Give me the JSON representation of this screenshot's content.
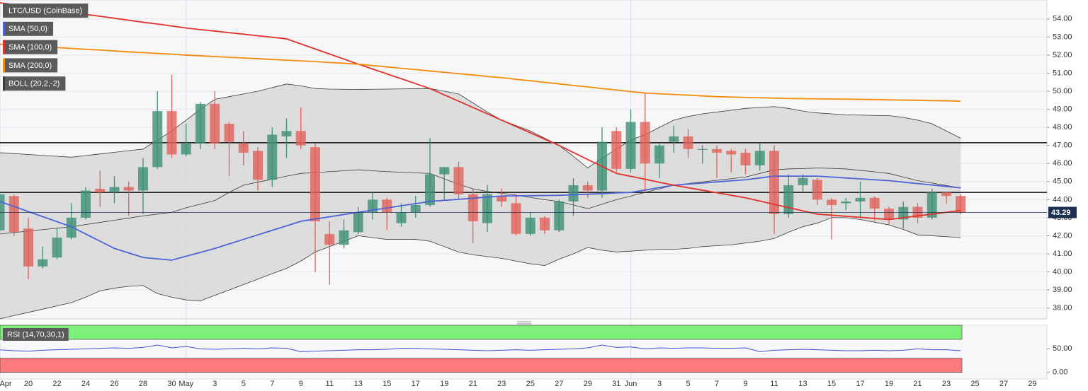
{
  "chart_data": [
    {
      "type": "candlestick",
      "categories": [
        "Apr",
        null,
        "20",
        null,
        "22",
        null,
        "24",
        null,
        "26",
        null,
        "28",
        null,
        "30",
        "May",
        null,
        "3",
        null,
        "5",
        null,
        "7",
        null,
        "9",
        null,
        "11",
        null,
        "13",
        null,
        "15",
        null,
        "17",
        null,
        "19",
        null,
        "21",
        null,
        "23",
        null,
        "25",
        null,
        "27",
        null,
        "29",
        null,
        "31",
        "Jun",
        null,
        "3",
        null,
        "5",
        null,
        "7",
        null,
        "9",
        null,
        "11",
        null,
        "13",
        null,
        "15",
        null,
        "17",
        null,
        "19",
        null,
        "21",
        null,
        "23",
        null,
        "25",
        null,
        "27",
        null,
        "29"
      ],
      "series": [
        {
          "name": "LTC/USD (CoinBase)",
          "up_color": "#3f9078",
          "down_color": "#e0615a",
          "open": [
            42.3,
            44.2,
            42.4,
            40.3,
            40.8,
            41.9,
            43.0,
            44.6,
            44.4,
            44.7,
            44.5,
            45.8,
            48.9,
            46.5,
            47.1,
            49.3,
            48.2,
            47.1,
            46.7,
            45.1,
            47.5,
            47.8,
            46.9,
            42.1,
            41.5,
            42.2,
            43.3,
            44.0,
            42.7,
            43.3,
            43.7,
            45.4,
            45.8,
            44.3,
            42.7,
            44.2,
            43.8,
            42.1,
            43.0,
            42.3,
            43.9,
            44.8,
            44.5,
            47.8,
            45.7,
            48.3,
            46.0,
            47.2,
            47.5,
            46.8,
            46.8,
            46.7,
            46.6,
            45.9,
            46.7,
            43.2,
            44.8,
            45.1,
            44.0,
            43.8,
            43.9,
            44.1,
            43.5,
            42.9,
            43.6,
            43.0,
            44.4,
            44.2,
            null,
            null,
            null,
            null,
            null
          ],
          "high": [
            44.5,
            44.3,
            43.0,
            41.4,
            42.4,
            43.8,
            44.7,
            45.6,
            45.3,
            45.0,
            46.3,
            50.0,
            50.9,
            48.2,
            49.4,
            50.0,
            48.3,
            47.8,
            46.9,
            48.0,
            48.5,
            49.1,
            47.1,
            42.8,
            42.9,
            43.6,
            44.4,
            44.1,
            43.8,
            44.2,
            47.4,
            45.8,
            46.1,
            44.6,
            44.8,
            44.6,
            44.3,
            43.3,
            43.1,
            44.0,
            45.2,
            45.0,
            48.0,
            48.0,
            49.0,
            49.9,
            47.1,
            48.1,
            47.9,
            47.0,
            47.0,
            46.8,
            46.8,
            47.1,
            47.0,
            45.4,
            45.4,
            45.2,
            44.1,
            44.1,
            45.0,
            44.2,
            43.6,
            43.9,
            43.8,
            44.6,
            44.4,
            44.3,
            null,
            null,
            null,
            null,
            null
          ],
          "low": [
            42.2,
            42.0,
            39.6,
            40.2,
            40.7,
            41.8,
            42.9,
            43.6,
            43.8,
            43.1,
            43.2,
            45.7,
            46.3,
            46.4,
            46.8,
            46.8,
            45.3,
            45.9,
            44.5,
            44.7,
            46.3,
            46.8,
            40.0,
            39.3,
            41.3,
            42.1,
            42.9,
            42.3,
            42.5,
            43.0,
            43.6,
            44.0,
            44.0,
            41.6,
            42.2,
            43.6,
            42.0,
            42.0,
            42.1,
            42.2,
            43.1,
            44.1,
            44.1,
            45.5,
            45.5,
            44.4,
            45.2,
            46.6,
            46.3,
            46.0,
            45.2,
            45.5,
            45.4,
            45.6,
            42.1,
            43.0,
            44.4,
            43.7,
            41.8,
            43.4,
            43.0,
            42.8,
            42.6,
            42.4,
            42.7,
            42.9,
            43.8,
            43.2,
            null,
            null,
            null,
            null,
            null
          ],
          "close": [
            44.3,
            42.2,
            40.3,
            40.7,
            41.9,
            43.0,
            44.5,
            44.4,
            44.7,
            44.5,
            45.8,
            48.9,
            46.5,
            47.1,
            49.3,
            47.1,
            47.2,
            46.6,
            45.1,
            47.6,
            47.8,
            47.0,
            42.8,
            41.5,
            42.3,
            43.3,
            44.0,
            43.3,
            43.3,
            43.7,
            45.4,
            45.8,
            44.3,
            42.8,
            44.3,
            43.9,
            42.1,
            43.0,
            42.3,
            43.9,
            44.8,
            44.5,
            47.2,
            45.7,
            48.3,
            46.0,
            47.0,
            47.5,
            46.8,
            46.8,
            46.6,
            46.5,
            45.9,
            46.7,
            43.2,
            44.8,
            45.2,
            44.0,
            43.7,
            43.9,
            44.1,
            43.5,
            42.9,
            43.6,
            43.0,
            44.4,
            44.2,
            43.29,
            null,
            null,
            null,
            null,
            null
          ]
        }
      ],
      "indicators": [
        {
          "name": "SMA (50,0)",
          "color": "#4d63d6",
          "values": [
            43.9,
            43.62,
            43.34,
            43.06,
            42.78,
            42.5,
            42.1,
            41.7,
            41.3,
            41.05,
            40.8,
            40.72,
            40.65,
            40.87,
            41.08,
            41.3,
            41.55,
            41.8,
            42.05,
            42.3,
            42.55,
            42.8,
            42.93,
            43.05,
            43.18,
            43.3,
            43.42,
            43.54,
            43.66,
            43.78,
            43.9,
            43.96,
            44.02,
            44.08,
            44.14,
            44.2,
            44.21,
            44.22,
            44.23,
            44.24,
            44.27,
            44.3,
            44.33,
            44.37,
            44.4,
            44.53,
            44.67,
            44.8,
            44.86,
            44.92,
            44.98,
            45.04,
            45.1,
            45.2,
            45.3,
            45.3,
            45.3,
            45.3,
            45.25,
            45.2,
            45.15,
            45.1,
            45.05,
            44.97,
            44.89,
            44.81,
            44.73,
            44.65,
            null,
            null,
            null,
            null,
            null
          ]
        },
        {
          "name": "SMA (100,0)",
          "color": "#e2312b",
          "values": [
            54.9,
            54.79,
            54.68,
            54.58,
            54.47,
            54.36,
            54.25,
            54.15,
            54.04,
            53.93,
            53.82,
            53.72,
            53.61,
            53.5,
            53.41,
            53.33,
            53.24,
            53.16,
            53.07,
            52.99,
            52.9,
            52.62,
            52.34,
            52.06,
            51.78,
            51.5,
            51.23,
            50.96,
            50.69,
            50.42,
            50.15,
            49.8,
            49.45,
            49.1,
            48.75,
            48.4,
            48.05,
            47.7,
            47.35,
            47.0,
            46.61,
            46.22,
            45.84,
            45.45,
            45.29,
            45.13,
            44.96,
            44.8,
            44.66,
            44.52,
            44.38,
            44.24,
            44.1,
            43.92,
            43.74,
            43.56,
            43.38,
            43.2,
            43.14,
            43.08,
            43.02,
            42.96,
            42.9,
            43.0,
            43.1,
            43.2,
            43.3,
            43.4,
            null,
            null,
            null,
            null,
            null
          ]
        },
        {
          "name": "SMA (200,0)",
          "color": "#f58b0a",
          "values": [
            52.6,
            52.55,
            52.51,
            52.46,
            52.42,
            52.37,
            52.32,
            52.28,
            52.23,
            52.18,
            52.14,
            52.09,
            52.05,
            52.0,
            51.96,
            51.92,
            51.88,
            51.84,
            51.8,
            51.76,
            51.72,
            51.68,
            51.64,
            51.59,
            51.55,
            51.5,
            51.42,
            51.35,
            51.27,
            51.2,
            51.12,
            51.05,
            50.97,
            50.9,
            50.82,
            50.75,
            50.66,
            50.58,
            50.49,
            50.41,
            50.32,
            50.24,
            50.15,
            50.07,
            49.98,
            49.9,
            49.86,
            49.82,
            49.78,
            49.74,
            49.7,
            49.68,
            49.66,
            49.64,
            49.62,
            49.6,
            49.59,
            49.58,
            49.57,
            49.56,
            49.55,
            49.54,
            49.52,
            49.51,
            49.5,
            49.48,
            49.47,
            49.45,
            null,
            null,
            null,
            null,
            null
          ]
        }
      ],
      "bollinger": {
        "name": "BOLL (20,2,-2)",
        "color": "#3a3a3a",
        "fill": "#d6d6d6",
        "upper": [
          46.6,
          46.55,
          46.5,
          46.45,
          46.4,
          46.35,
          46.44,
          46.53,
          46.62,
          46.71,
          46.8,
          47.3,
          47.8,
          48.4,
          49.0,
          49.55,
          49.7,
          49.85,
          50.0,
          50.2,
          50.4,
          50.3,
          50.15,
          50.12,
          50.11,
          50.1,
          50.11,
          50.12,
          50.13,
          50.14,
          50.15,
          50.0,
          49.85,
          49.35,
          48.85,
          48.4,
          48.1,
          47.8,
          47.4,
          47.0,
          46.4,
          45.75,
          46.3,
          46.8,
          47.3,
          47.6,
          48.0,
          48.4,
          48.6,
          48.75,
          48.85,
          48.95,
          49.05,
          49.1,
          49.15,
          49.05,
          48.9,
          48.8,
          48.75,
          48.7,
          48.68,
          48.66,
          48.65,
          48.55,
          48.4,
          48.2,
          47.8,
          47.4,
          null,
          null,
          null,
          null,
          null
        ],
        "middle": [
          42.1,
          42.18,
          42.26,
          42.34,
          42.42,
          42.5,
          42.62,
          42.74,
          42.86,
          42.98,
          43.1,
          43.2,
          43.3,
          43.55,
          43.75,
          43.95,
          44.4,
          44.8,
          44.97,
          45.13,
          45.3,
          45.45,
          45.5,
          45.55,
          45.6,
          45.65,
          45.6,
          45.55,
          45.52,
          45.48,
          45.45,
          45.15,
          44.85,
          44.6,
          44.45,
          44.35,
          44.25,
          44.12,
          44.0,
          43.9,
          43.7,
          43.5,
          43.75,
          44.0,
          44.2,
          44.4,
          44.6,
          44.8,
          44.89,
          44.98,
          45.07,
          45.16,
          45.25,
          45.45,
          45.65,
          45.7,
          45.72,
          45.75,
          45.73,
          45.7,
          45.62,
          45.54,
          45.45,
          45.25,
          45.05,
          44.92,
          44.78,
          44.65,
          null,
          null,
          null,
          null,
          null
        ],
        "lower": [
          37.4,
          37.58,
          37.76,
          37.94,
          38.12,
          38.3,
          38.6,
          38.95,
          39.1,
          39.2,
          39.25,
          38.8,
          38.6,
          38.45,
          38.4,
          38.7,
          39.0,
          39.3,
          39.6,
          39.9,
          40.2,
          40.6,
          41.1,
          41.4,
          41.7,
          42.0,
          41.9,
          41.8,
          41.8,
          41.8,
          41.7,
          41.4,
          41.1,
          40.95,
          40.85,
          40.75,
          40.6,
          40.45,
          40.35,
          40.7,
          41.0,
          41.35,
          41.2,
          41.1,
          41.15,
          41.2,
          41.25,
          41.25,
          41.3,
          41.4,
          41.45,
          41.5,
          41.6,
          41.7,
          41.85,
          42.2,
          42.5,
          42.7,
          43.0,
          43.0,
          42.9,
          42.75,
          42.6,
          42.35,
          42.05,
          42.0,
          41.95,
          41.9,
          null,
          null,
          null,
          null,
          null
        ]
      },
      "levels": [
        47.15,
        44.4
      ],
      "last_price": 43.29,
      "ylim": [
        37.4,
        55.05
      ],
      "yticks": [
        {
          "value": 38,
          "label": "38.00"
        },
        {
          "value": 39,
          "label": "39.00"
        },
        {
          "value": 40,
          "label": "40.00"
        },
        {
          "value": 41,
          "label": "41.00"
        },
        {
          "value": 42,
          "label": "42.00"
        },
        {
          "value": 43,
          "label": "43.00"
        },
        {
          "value": 44,
          "label": "44.00"
        },
        {
          "value": 45,
          "label": "45.00"
        },
        {
          "value": 46,
          "label": "46.00"
        },
        {
          "value": 47,
          "label": "47.00"
        },
        {
          "value": 48,
          "label": "48.00"
        },
        {
          "value": 49,
          "label": "49.00"
        },
        {
          "value": 50,
          "label": "50.00"
        },
        {
          "value": 51,
          "label": "51.00"
        },
        {
          "value": 52,
          "label": "52.00"
        },
        {
          "value": 53,
          "label": "53.00"
        },
        {
          "value": 54,
          "label": "54.00"
        }
      ],
      "grid": true
    },
    {
      "type": "line",
      "series": [
        {
          "name": "RSI (14,70,30,1)",
          "color": "#3f51d0",
          "values": [
            48,
            46,
            45,
            47,
            48,
            49,
            50,
            51,
            52,
            51,
            53,
            58,
            52,
            55,
            50,
            49,
            50,
            51,
            50,
            52,
            51,
            44,
            45,
            46,
            47,
            48,
            48,
            49,
            51,
            51,
            50,
            49,
            48,
            47,
            46,
            47,
            48,
            47,
            48,
            49,
            50,
            52,
            58,
            53,
            54,
            50,
            52,
            51,
            52,
            52,
            51,
            51,
            52,
            44,
            47,
            48,
            49,
            48,
            47,
            46,
            46,
            47,
            46,
            47,
            50,
            48,
            48,
            46,
            null,
            null,
            null,
            null,
            null
          ]
        }
      ],
      "bands": [
        {
          "from": 70,
          "to": 100,
          "color": "#7df07a"
        },
        {
          "from": 0,
          "to": 30,
          "color": "#ff7b7b"
        }
      ],
      "ylim": [
        -14,
        100
      ],
      "yticks": [
        {
          "value": 0,
          "label": "0.00"
        },
        {
          "value": 50,
          "label": "50.00"
        }
      ]
    }
  ]
}
